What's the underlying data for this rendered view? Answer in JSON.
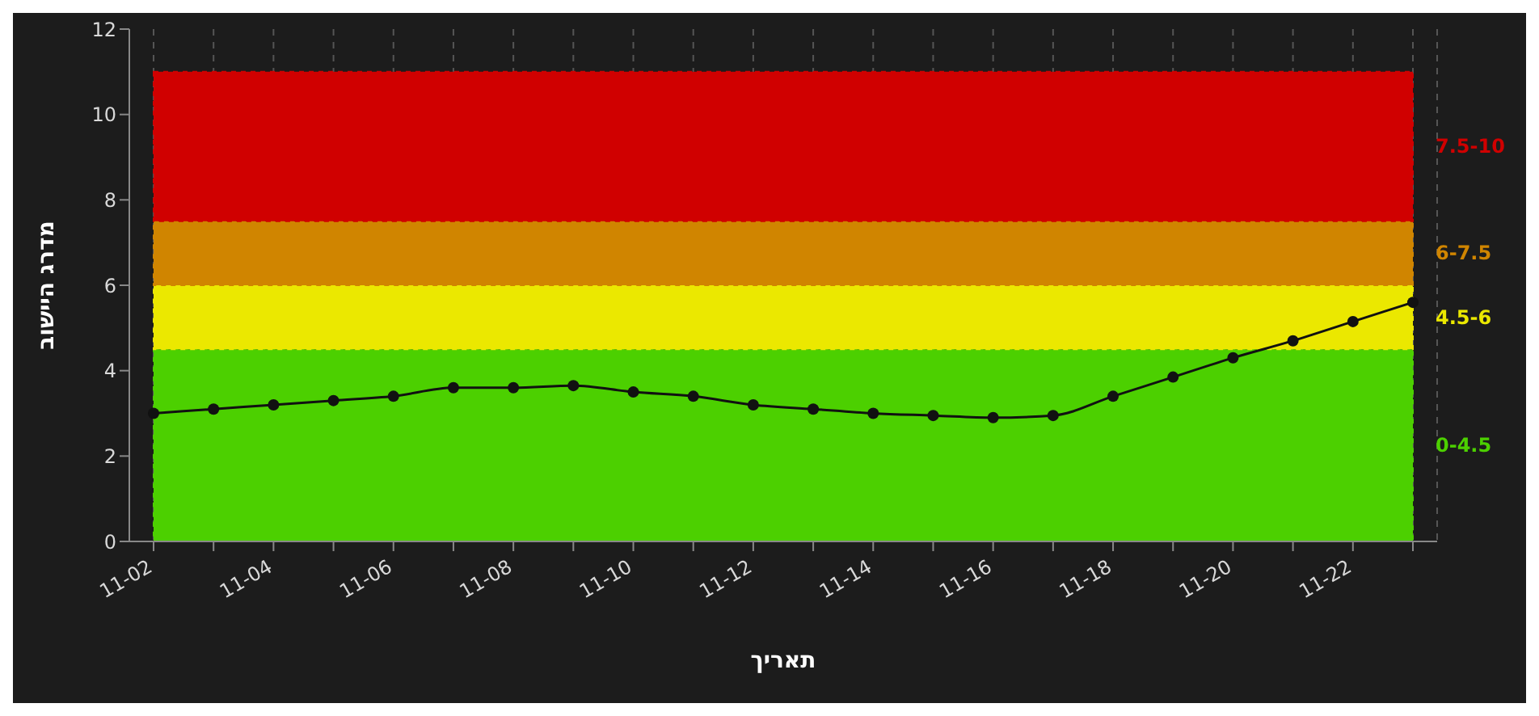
{
  "chart_data": {
    "type": "line",
    "xlabel": "תאריך",
    "ylabel": "מדרג היישוב",
    "categories": [
      "11-02",
      null,
      "11-04",
      null,
      "11-06",
      null,
      "11-08",
      null,
      "11-10",
      null,
      "11-12",
      null,
      "11-14",
      null,
      "11-16",
      null,
      "11-18",
      null,
      "11-20",
      null,
      "11-22",
      null
    ],
    "series": [
      {
        "color": "#111111",
        "values": [
          3.0,
          3.1,
          3.2,
          3.3,
          3.4,
          3.6,
          3.6,
          3.65,
          3.5,
          3.4,
          3.2,
          3.1,
          3.0,
          2.95,
          2.9,
          2.95,
          3.4,
          3.85,
          4.3,
          4.7,
          5.15,
          5.6
        ]
      }
    ],
    "ylim": [
      0,
      12
    ],
    "yticks": [
      0,
      2,
      4,
      6,
      8,
      10,
      12
    ],
    "bands": [
      {
        "axis": "y",
        "from": 0,
        "to": 4.5,
        "label": "0-4.5",
        "color": "#4cd000"
      },
      {
        "axis": "y",
        "from": 4.5,
        "to": 6,
        "label": "4.5-6",
        "color": "#ebe800"
      },
      {
        "axis": "y",
        "from": 6,
        "to": 7.5,
        "label": "6-7.5",
        "color": "#d08500"
      },
      {
        "axis": "y",
        "from": 7.5,
        "to": 11,
        "label": "7.5-10",
        "color": "#d00000"
      }
    ],
    "grid": "x",
    "marker": "circle",
    "line_style": "solid"
  }
}
